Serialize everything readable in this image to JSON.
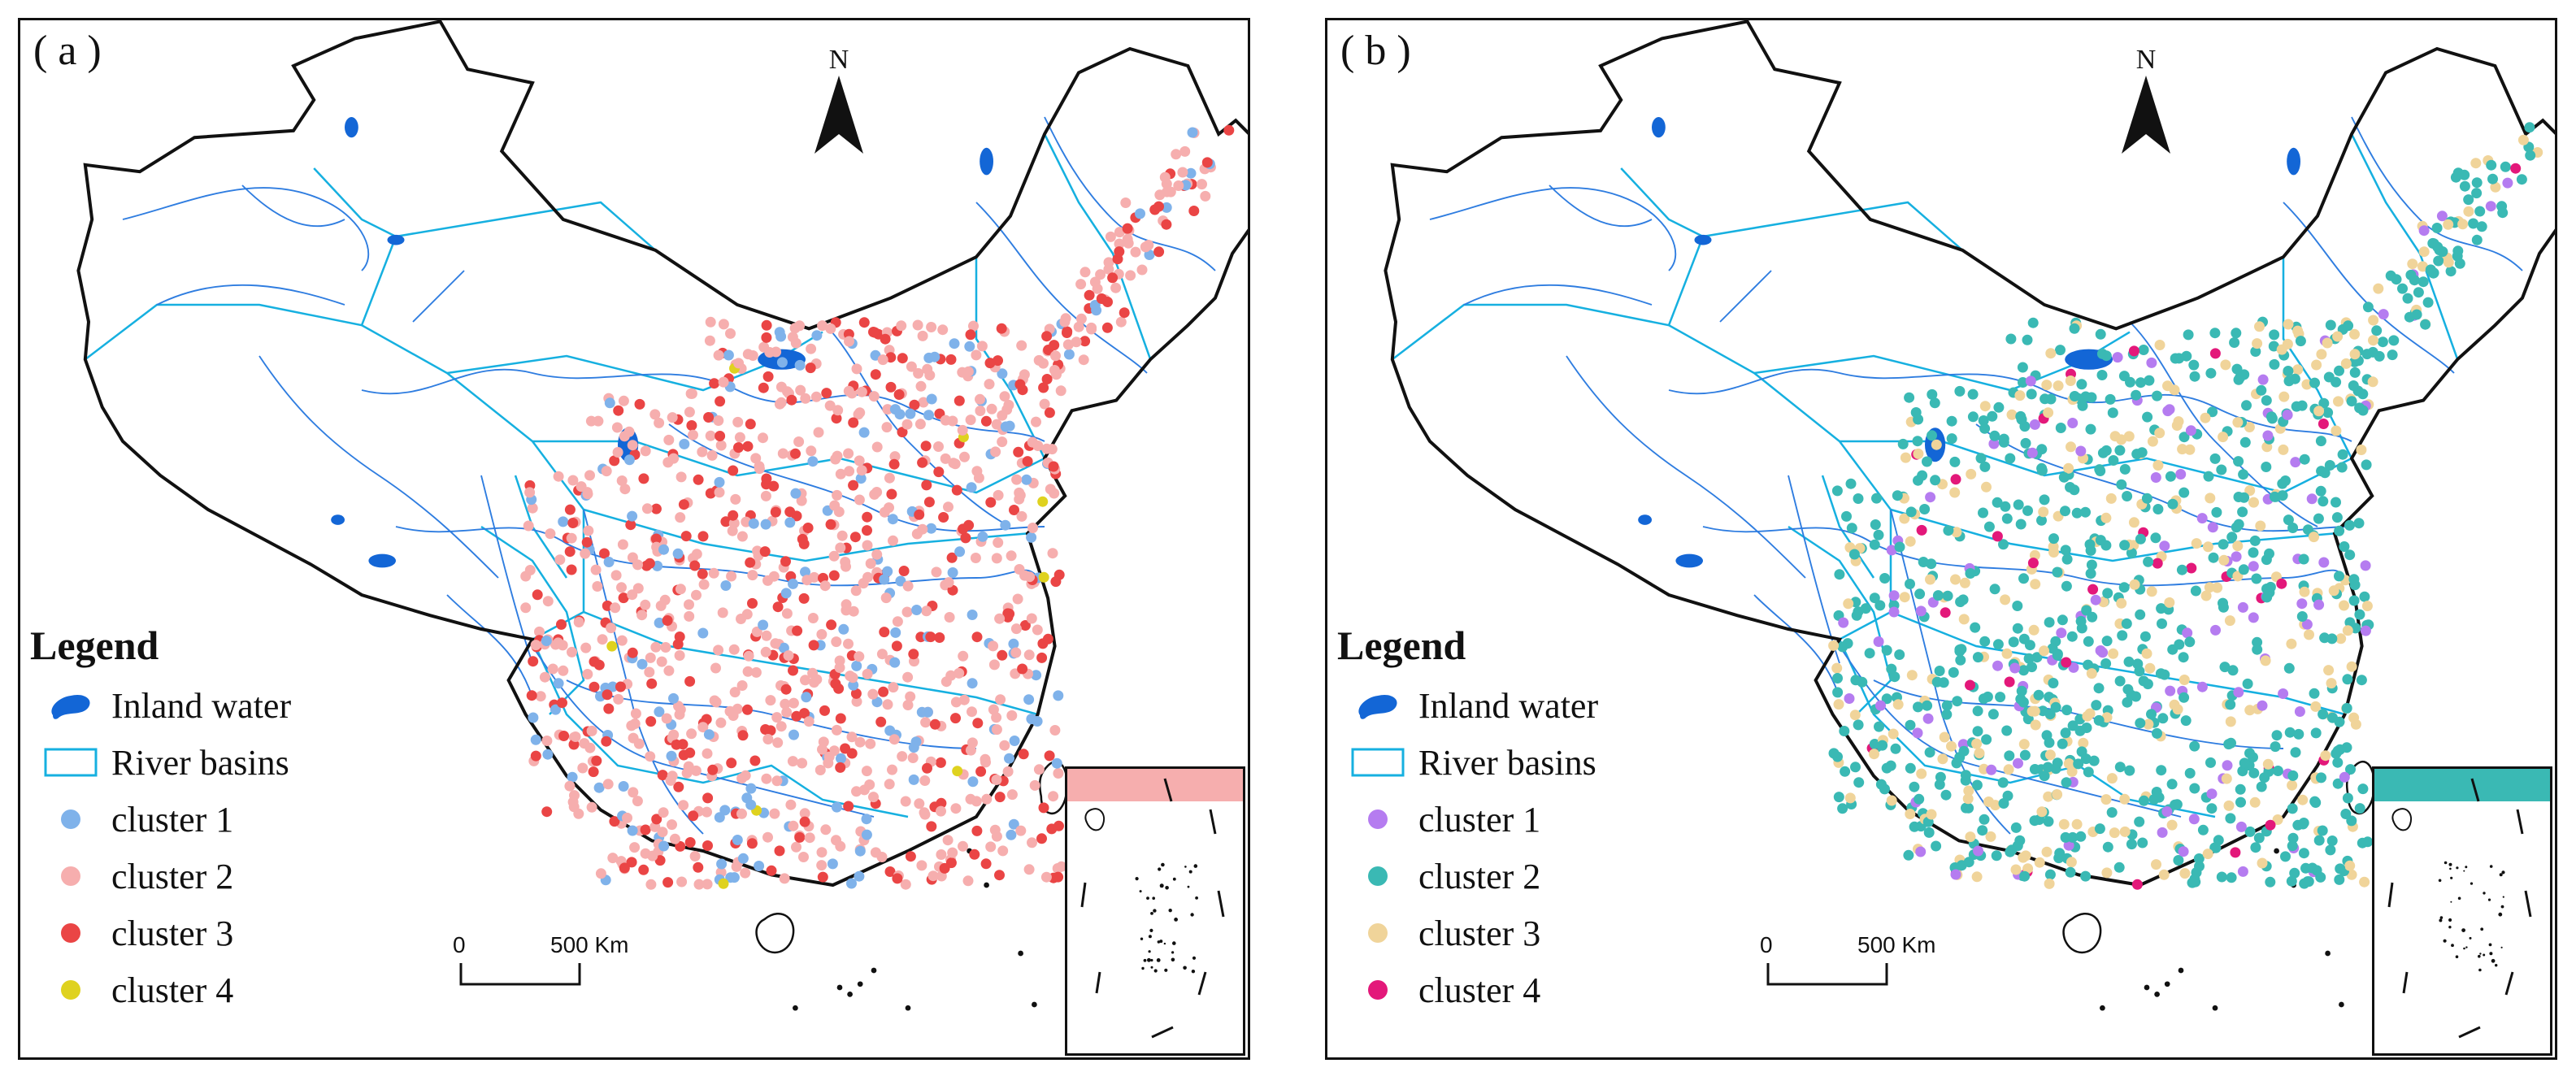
{
  "panels": [
    {
      "label": "( a )",
      "north_label": "N",
      "legend": {
        "title": "Legend",
        "inland_water": "Inland water",
        "river_basins": "River basins",
        "clusters": [
          {
            "label": "cluster 1",
            "color": "#7fb2ea"
          },
          {
            "label": "cluster 2",
            "color": "#f6aeae"
          },
          {
            "label": "cluster 3",
            "color": "#ea4545"
          },
          {
            "label": "cluster 4",
            "color": "#dfd21f"
          }
        ]
      },
      "scale": {
        "zero": "0",
        "distance": "500 Km"
      },
      "point_weights": [
        0.14,
        0.56,
        0.29,
        0.01
      ]
    },
    {
      "label": "( b )",
      "north_label": "N",
      "legend": {
        "title": "Legend",
        "inland_water": "Inland water",
        "river_basins": "River basins",
        "clusters": [
          {
            "label": "cluster 1",
            "color": "#b57cf0"
          },
          {
            "label": "cluster 2",
            "color": "#3ab9b4"
          },
          {
            "label": "cluster 3",
            "color": "#f0d49a"
          },
          {
            "label": "cluster 4",
            "color": "#e3187a"
          }
        ]
      },
      "scale": {
        "zero": "0",
        "distance": "500 Km"
      },
      "point_weights": [
        0.09,
        0.64,
        0.25,
        0.02
      ]
    }
  ],
  "styles": {
    "river_color": "#2f7de0",
    "basin_color": "#16b0e0",
    "water_color": "#1366d6",
    "border_color": "#111111"
  }
}
